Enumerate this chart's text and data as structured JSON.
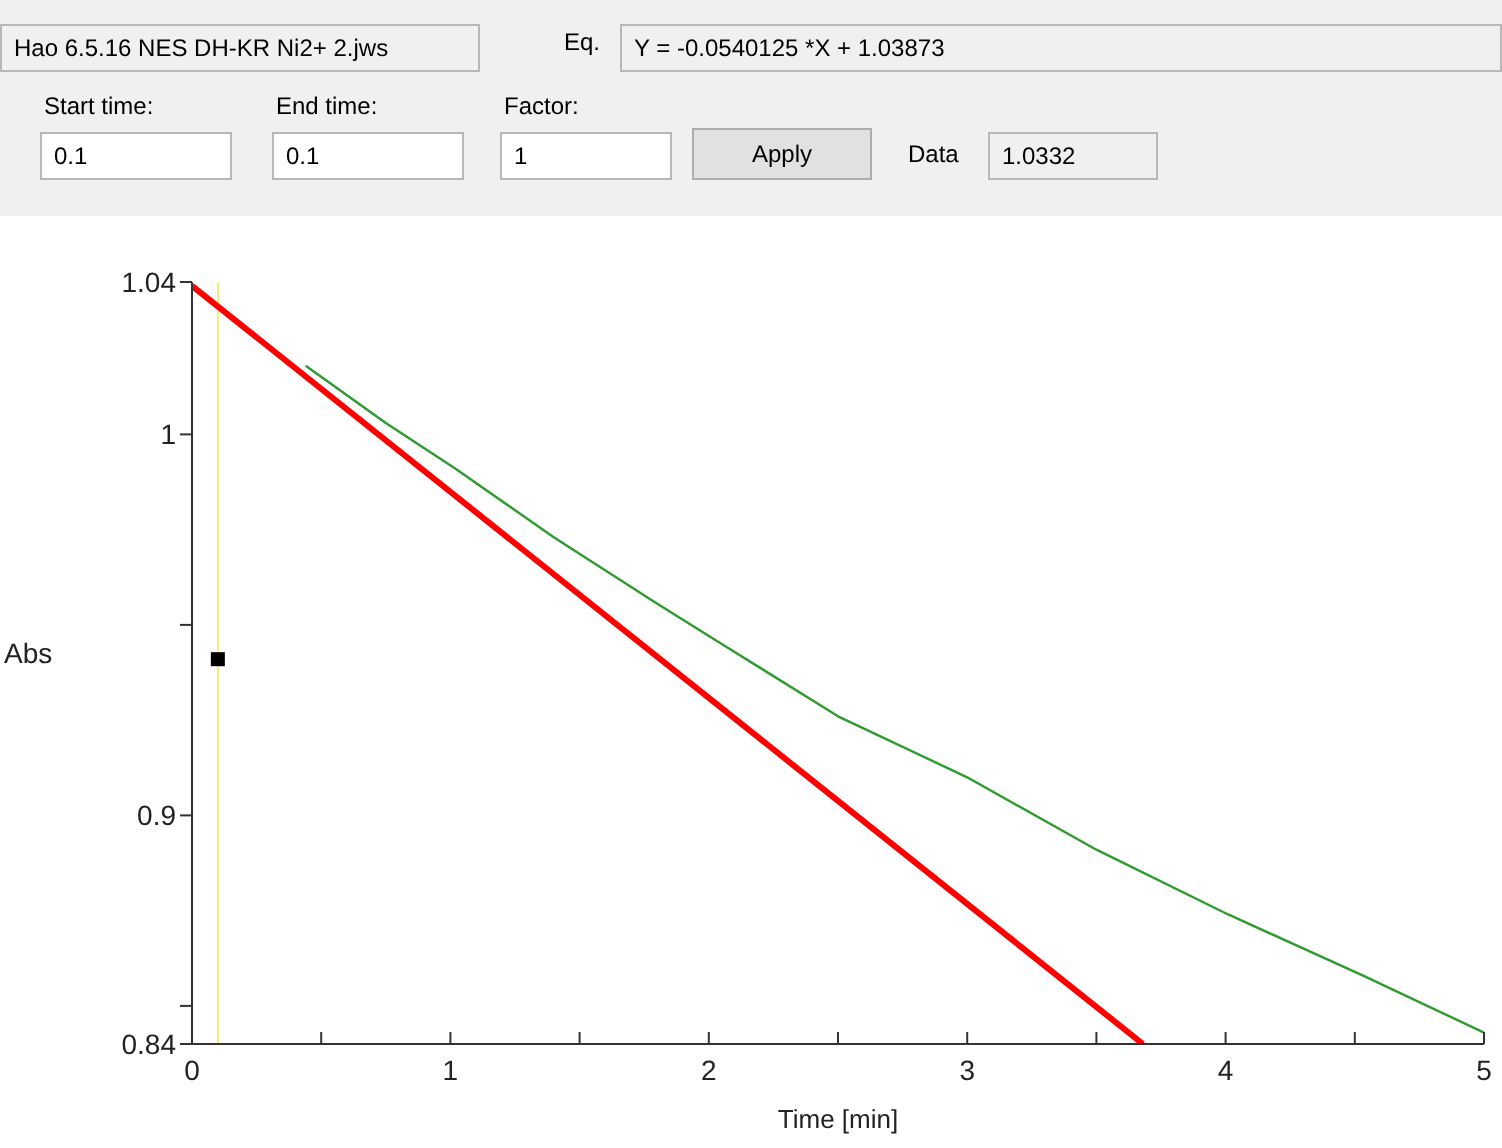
{
  "chart_data": {
    "type": "line",
    "xlabel": "Time [min]",
    "ylabel": "Abs",
    "annotations": [
      "Hao 6.5.16 NES DH-KR Ni2+ 2.jws",
      "Eq.",
      "Y = -0.0540125 *X + 1.03873",
      "Start time:",
      "0.1",
      "End time:",
      "0.1",
      "Factor:",
      "1",
      "Apply",
      "Data",
      "1.0332"
    ],
    "xlim": [
      0,
      5
    ],
    "ylim": [
      0.84,
      1.04
    ],
    "xticks": [
      0,
      {
        "value": 0.5,
        "label": null
      },
      1,
      {
        "value": 1.5,
        "label": null
      },
      2,
      {
        "value": 2.5,
        "label": null
      },
      3,
      {
        "value": 3.5,
        "label": null
      },
      4,
      {
        "value": 4.5,
        "label": null
      },
      5
    ],
    "yticks": [
      0.84,
      {
        "value": 0.85,
        "label": null
      },
      0.9,
      {
        "value": 0.95,
        "label": null
      },
      1,
      1.04
    ],
    "grid": false,
    "legend": false,
    "marker": "none",
    "ref_lines": [
      {
        "axis": "x",
        "value": 0.1,
        "color": "#f2ee6e"
      }
    ],
    "series": [
      {
        "type": "line",
        "color": "#2f9a2f",
        "x": [
          0.44,
          0.75,
          1.02,
          1.4,
          1.79,
          2.05,
          2.5,
          3.0,
          3.5,
          4.01,
          4.53,
          5.0
        ],
        "values": [
          1.018,
          1.003,
          0.991,
          0.973,
          0.956,
          0.945,
          0.926,
          0.91,
          0.891,
          0.874,
          0.858,
          0.843
        ]
      },
      {
        "type": "line",
        "color": "#ff0000",
        "x": [
          0,
          3.68
        ],
        "values": [
          1.039,
          0.84
        ]
      },
      {
        "type": "scatter",
        "color": "#000000",
        "marker": "square",
        "x": [
          0.1
        ],
        "values": [
          0.941
        ]
      }
    ]
  }
}
